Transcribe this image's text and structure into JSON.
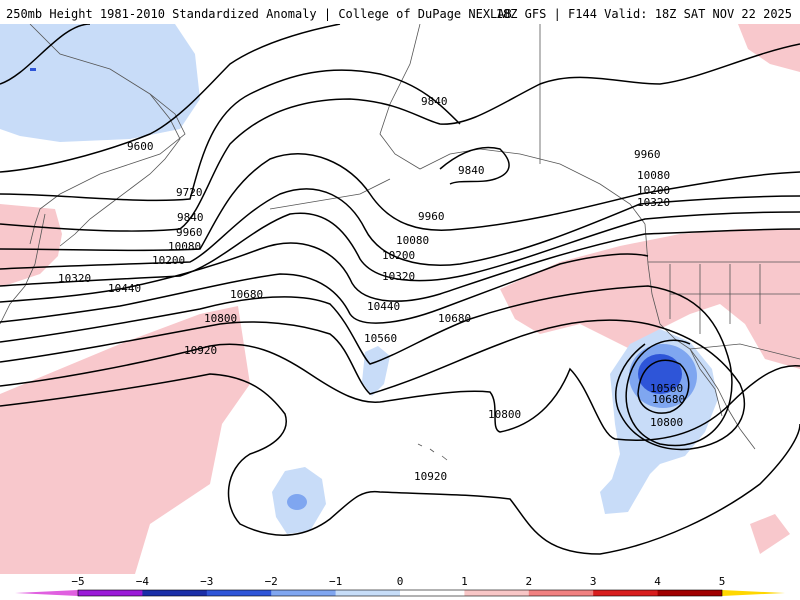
{
  "header": {
    "title": "250mb Height 1981-2010 Standardized Anomaly | College of DuPage NEXLAB",
    "run_info": "18Z GFS | F144 Valid: 18Z SAT NOV 22 2025"
  },
  "contours": {
    "c9600": "9600",
    "c9720": "9720",
    "c9840_a": "9840",
    "c9840_b": "9840",
    "c9840_c": "9840",
    "c9960_a": "9960",
    "c9960_b": "9960",
    "c9960_c": "9960",
    "c10080_a": "10080",
    "c10080_b": "10080",
    "c10080_c": "10080",
    "c10200_a": "10200",
    "c10200_b": "10200",
    "c10200_c": "10200",
    "c10320_a": "10320",
    "c10320_b": "10320",
    "c10320_c": "10320",
    "c10440_a": "10440",
    "c10440_b": "10440",
    "c10560_a": "10560",
    "c10560_b": "10560",
    "c10680_a": "10680",
    "c10680_b": "10680",
    "c10680_c": "10680",
    "c10800_a": "10800",
    "c10800_b": "10800",
    "c10800_c": "10800",
    "c10920_a": "10920",
    "c10920_b": "10920"
  },
  "colorbar": {
    "ticks": [
      "−5",
      "−4",
      "−3",
      "−2",
      "−1",
      "0",
      "1",
      "2",
      "3",
      "4",
      "5"
    ],
    "colors": [
      "#e060e0",
      "#9a1ad8",
      "#1a2fa8",
      "#2e55d8",
      "#7fa6f0",
      "#c6ddf8",
      "#ffffff",
      "#f8c6c6",
      "#f08080",
      "#d81e1e",
      "#a00000",
      "#ffa500",
      "#ffd700"
    ]
  },
  "anomaly_colors": {
    "pos_light": "#f8c8cc",
    "neg_light": "#c8dcf8",
    "neg_mid": "#7fa6f0",
    "neg_strong": "#2e55d8"
  }
}
